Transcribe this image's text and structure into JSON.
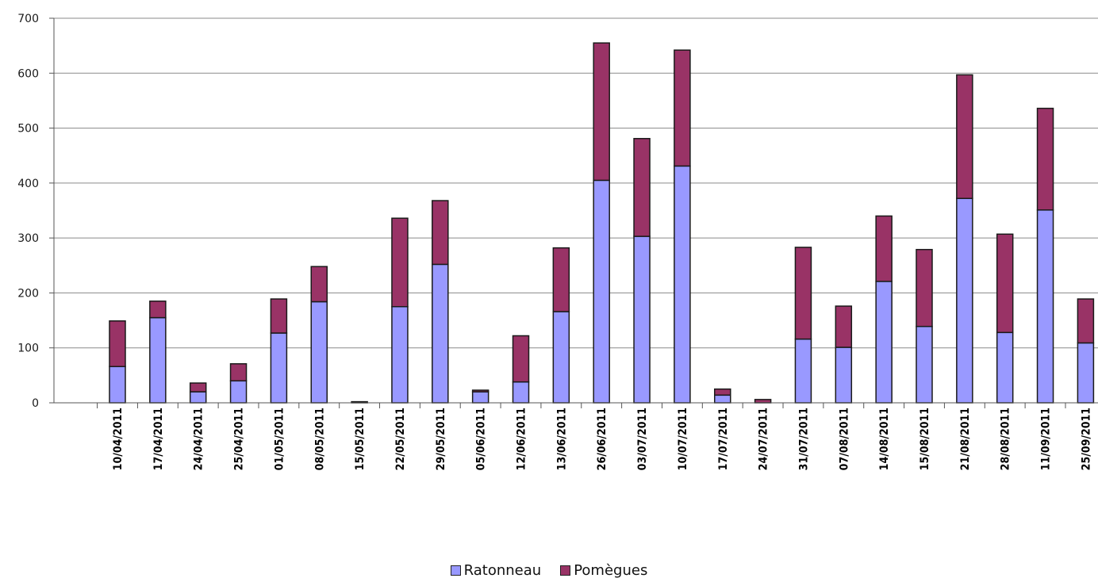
{
  "chart_data": {
    "type": "bar",
    "stacked": true,
    "categories": [
      "10/04/2011",
      "17/04/2011",
      "24/04/2011",
      "25/04/2011",
      "01/05/2011",
      "08/05/2011",
      "15/05/2011",
      "22/05/2011",
      "29/05/2011",
      "05/06/2011",
      "12/06/2011",
      "13/06/2011",
      "26/06/2011",
      "03/07/2011",
      "10/07/2011",
      "17/07/2011",
      "24/07/2011",
      "31/07/2011",
      "07/08/2011",
      "14/08/2011",
      "15/08/2011",
      "21/08/2011",
      "28/08/2011",
      "11/09/2011",
      "25/09/2011"
    ],
    "series": [
      {
        "name": "Ratonneau",
        "color": "#9999ff",
        "values": [
          66,
          155,
          20,
          40,
          127,
          184,
          0,
          175,
          252,
          20,
          38,
          166,
          405,
          303,
          431,
          14,
          0,
          116,
          101,
          221,
          139,
          372,
          128,
          351,
          109
        ]
      },
      {
        "name": "Pomègues",
        "color": "#993366",
        "values": [
          83,
          30,
          16,
          31,
          62,
          64,
          2,
          161,
          116,
          3,
          84,
          116,
          250,
          178,
          211,
          11,
          6,
          167,
          75,
          119,
          140,
          225,
          179,
          185,
          80
        ]
      }
    ],
    "ylim": [
      0,
      700
    ],
    "yticks": [
      0,
      100,
      200,
      300,
      400,
      500,
      600,
      700
    ],
    "grid": true,
    "legend_position": "bottom"
  }
}
